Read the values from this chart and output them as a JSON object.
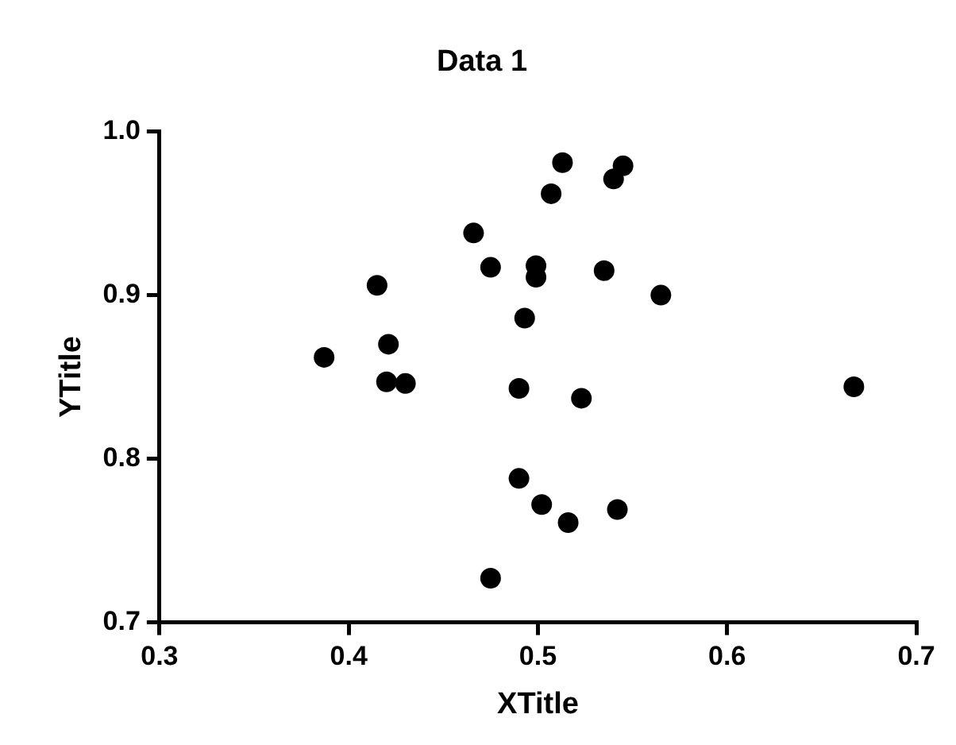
{
  "chart_data": {
    "type": "scatter",
    "title": "Data 1",
    "xlabel": "XTitle",
    "ylabel": "YTitle",
    "x": [
      0.387,
      0.415,
      0.421,
      0.42,
      0.43,
      0.466,
      0.475,
      0.493,
      0.49,
      0.49,
      0.502,
      0.475,
      0.507,
      0.499,
      0.499,
      0.513,
      0.545,
      0.54,
      0.535,
      0.565,
      0.523,
      0.667,
      0.516,
      0.542
    ],
    "series": [
      {
        "color": "#000000",
        "values": [
          0.862,
          0.906,
          0.87,
          0.847,
          0.846,
          0.938,
          0.917,
          0.886,
          0.843,
          0.788,
          0.772,
          0.727,
          0.962,
          0.918,
          0.911,
          0.981,
          0.979,
          0.971,
          0.915,
          0.9,
          0.837,
          0.844,
          0.761,
          0.769
        ]
      }
    ],
    "xlim": [
      0.3,
      0.7
    ],
    "xticks": [
      0.3,
      0.4,
      0.5,
      0.6,
      0.7
    ],
    "ylim": [
      0.7,
      1.0
    ],
    "yticks": [
      0.7,
      0.8,
      0.9,
      {
        "value": 1,
        "label": "1.0"
      }
    ],
    "grid": false,
    "legend": false,
    "marker": "circle"
  }
}
